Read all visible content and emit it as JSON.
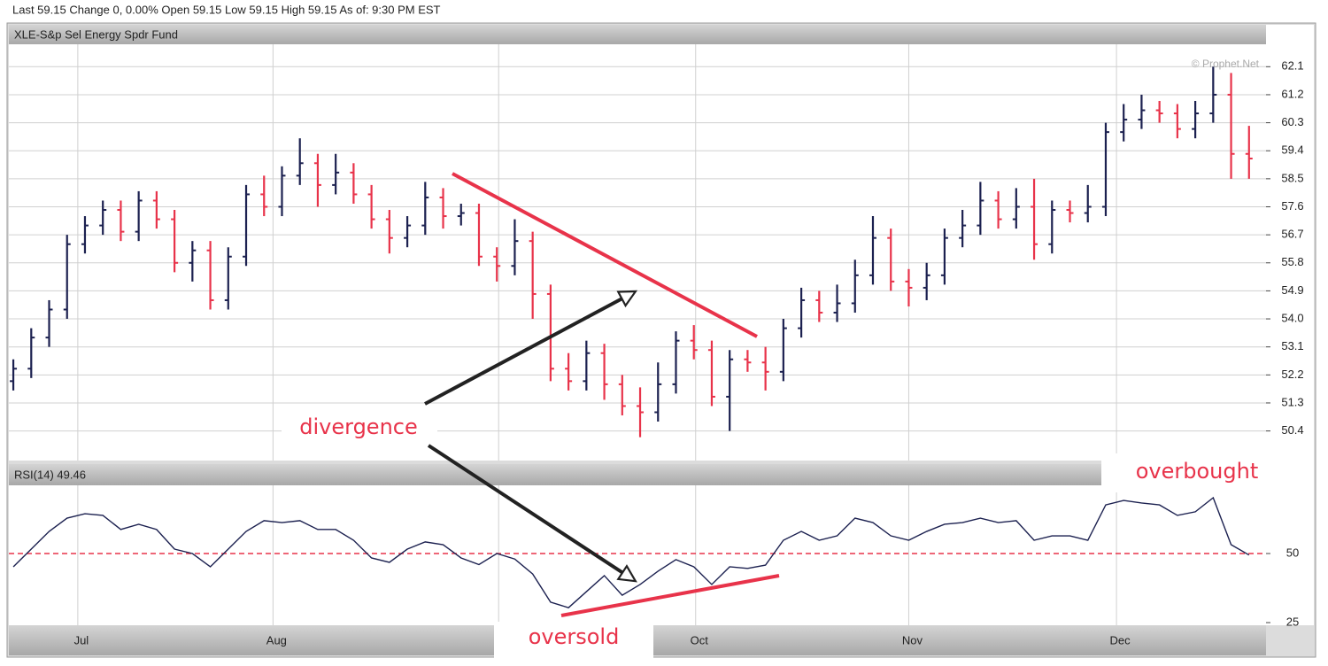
{
  "header": "Last 59.15 Change 0, 0.00%  Open 59.15  Low 59.15 High 59.15  As of: 9:30 PM EST",
  "chart_data": [
    {
      "type": "ohlc",
      "title": "XLE-S&p Sel Energy Spdr Fund",
      "watermark": "© Prophet.Net",
      "up_color": "#1c2150",
      "down_color": "#e8334a",
      "grid": true,
      "open": [
        52.0,
        52.4,
        53.4,
        54.3,
        56.4,
        57.0,
        57.5,
        56.8,
        57.8,
        57.2,
        55.8,
        56.2,
        54.6,
        56.0,
        58.0,
        57.6,
        58.6,
        59.0,
        58.3,
        58.7,
        58.0,
        57.2,
        56.6,
        57.0,
        57.9,
        57.3,
        57.4,
        56.0,
        55.7,
        56.5,
        54.8,
        52.4,
        52.0,
        52.9,
        51.9,
        51.2,
        51.0,
        51.9,
        53.3,
        53.0,
        51.5,
        52.7,
        52.6,
        52.3,
        53.7,
        54.6,
        54.2,
        54.5,
        55.4,
        56.6,
        55.2,
        55.0,
        55.4,
        56.6,
        57.0,
        57.8,
        57.2,
        57.6,
        56.4,
        57.5,
        57.4,
        57.6,
        60.0,
        60.4,
        60.7,
        60.6,
        60.1,
        60.6,
        61.2,
        59.3
      ],
      "high": [
        52.7,
        53.7,
        54.6,
        56.7,
        57.3,
        57.8,
        57.8,
        58.1,
        58.1,
        57.5,
        56.5,
        56.5,
        56.3,
        58.3,
        58.6,
        58.9,
        59.8,
        59.3,
        59.3,
        59.0,
        58.3,
        57.5,
        57.3,
        58.4,
        58.2,
        57.7,
        57.7,
        56.3,
        57.2,
        56.8,
        55.1,
        52.9,
        53.3,
        53.2,
        52.2,
        51.8,
        52.6,
        53.6,
        53.8,
        53.3,
        53.0,
        53.0,
        53.1,
        54.0,
        55.0,
        54.9,
        55.1,
        55.9,
        57.3,
        56.9,
        55.6,
        55.8,
        56.9,
        57.5,
        58.4,
        58.1,
        58.2,
        58.5,
        57.8,
        57.8,
        58.3,
        60.3,
        60.9,
        61.2,
        61.0,
        60.9,
        61.0,
        62.1,
        61.9,
        60.2
      ],
      "low": [
        51.7,
        52.1,
        53.1,
        54.0,
        56.1,
        56.7,
        56.5,
        56.5,
        56.9,
        55.5,
        55.2,
        54.3,
        54.3,
        55.7,
        57.3,
        57.3,
        58.3,
        57.6,
        58.0,
        57.7,
        56.9,
        56.1,
        56.3,
        56.7,
        56.9,
        57.0,
        55.7,
        55.2,
        55.4,
        54.0,
        52.0,
        51.7,
        51.7,
        51.4,
        50.9,
        50.2,
        50.7,
        51.6,
        52.7,
        51.2,
        50.4,
        52.3,
        51.7,
        52.0,
        53.4,
        53.9,
        53.9,
        54.2,
        55.1,
        54.9,
        54.4,
        54.6,
        55.1,
        56.3,
        56.7,
        56.9,
        56.9,
        55.9,
        56.1,
        57.1,
        57.1,
        57.3,
        59.7,
        60.1,
        60.3,
        59.8,
        59.8,
        60.3,
        58.5,
        58.5
      ],
      "close": [
        52.4,
        53.4,
        54.3,
        56.4,
        57.0,
        57.5,
        56.8,
        57.8,
        57.2,
        55.8,
        56.2,
        54.6,
        56.0,
        58.0,
        57.6,
        58.6,
        59.0,
        58.3,
        58.7,
        58.0,
        57.2,
        56.6,
        57.0,
        57.9,
        57.3,
        57.4,
        56.0,
        55.7,
        56.5,
        54.8,
        52.4,
        52.0,
        52.9,
        51.9,
        51.2,
        51.0,
        51.9,
        53.3,
        53.0,
        51.5,
        52.7,
        52.6,
        52.3,
        53.7,
        54.6,
        54.2,
        54.5,
        55.4,
        56.6,
        55.2,
        55.0,
        55.4,
        56.6,
        57.0,
        57.8,
        57.2,
        57.6,
        56.4,
        57.5,
        57.4,
        57.6,
        60.0,
        60.4,
        60.7,
        60.6,
        60.1,
        60.6,
        61.2,
        59.3,
        59.15
      ],
      "xlim": [
        -0.25,
        69.95
      ],
      "ylim": [
        49.45,
        62.82
      ],
      "yticks": [
        62.1,
        61.2,
        60.3,
        59.4,
        58.5,
        57.6,
        56.7,
        55.8,
        54.9,
        {
          "value": 54,
          "label": "54.0"
        },
        53.1,
        52.2,
        51.3,
        50.4
      ]
    },
    {
      "type": "line",
      "title": "RSI(14) 49.46",
      "grid": true,
      "series": [
        {
          "name": "RSI(14)",
          "color": "#1c2150",
          "values": [
            45.2,
            51.6,
            58.0,
            62.8,
            64.4,
            63.8,
            58.7,
            60.6,
            58.7,
            51.6,
            50.0,
            45.2,
            51.6,
            58.0,
            61.9,
            61.2,
            61.9,
            58.7,
            58.7,
            54.8,
            48.4,
            46.8,
            51.6,
            54.2,
            53.2,
            48.4,
            46.0,
            50.0,
            48.0,
            42.6,
            32.4,
            30.4,
            36.2,
            42.0,
            34.9,
            38.8,
            43.6,
            47.8,
            45.2,
            38.8,
            45.2,
            44.6,
            45.8,
            54.8,
            58.0,
            54.8,
            56.4,
            62.8,
            61.2,
            56.4,
            54.8,
            58.0,
            60.6,
            61.2,
            62.8,
            61.2,
            61.9,
            54.8,
            56.4,
            56.4,
            54.8,
            67.6,
            69.2,
            68.3,
            67.6,
            63.8,
            65.1,
            70.2,
            53.2,
            49.46
          ]
        }
      ],
      "reference_line": {
        "value": 50,
        "color": "#e8334a"
      },
      "xlim": [
        -0.25,
        69.95
      ],
      "ylim": [
        25,
        75
      ],
      "yticks": [
        50,
        25
      ],
      "xticks": [
        {
          "value": 3.6,
          "label": "Jul"
        },
        {
          "value": 14.5,
          "label": "Aug"
        },
        {
          "value": 27.1,
          "label": null
        },
        {
          "value": 38.1,
          "label": "Oct"
        },
        {
          "value": 50.0,
          "label": "Nov"
        },
        {
          "value": 61.6,
          "label": "Dec"
        }
      ]
    }
  ],
  "annotations": {
    "divergence": "divergence",
    "oversold": "oversold",
    "overbought": "overbought"
  }
}
